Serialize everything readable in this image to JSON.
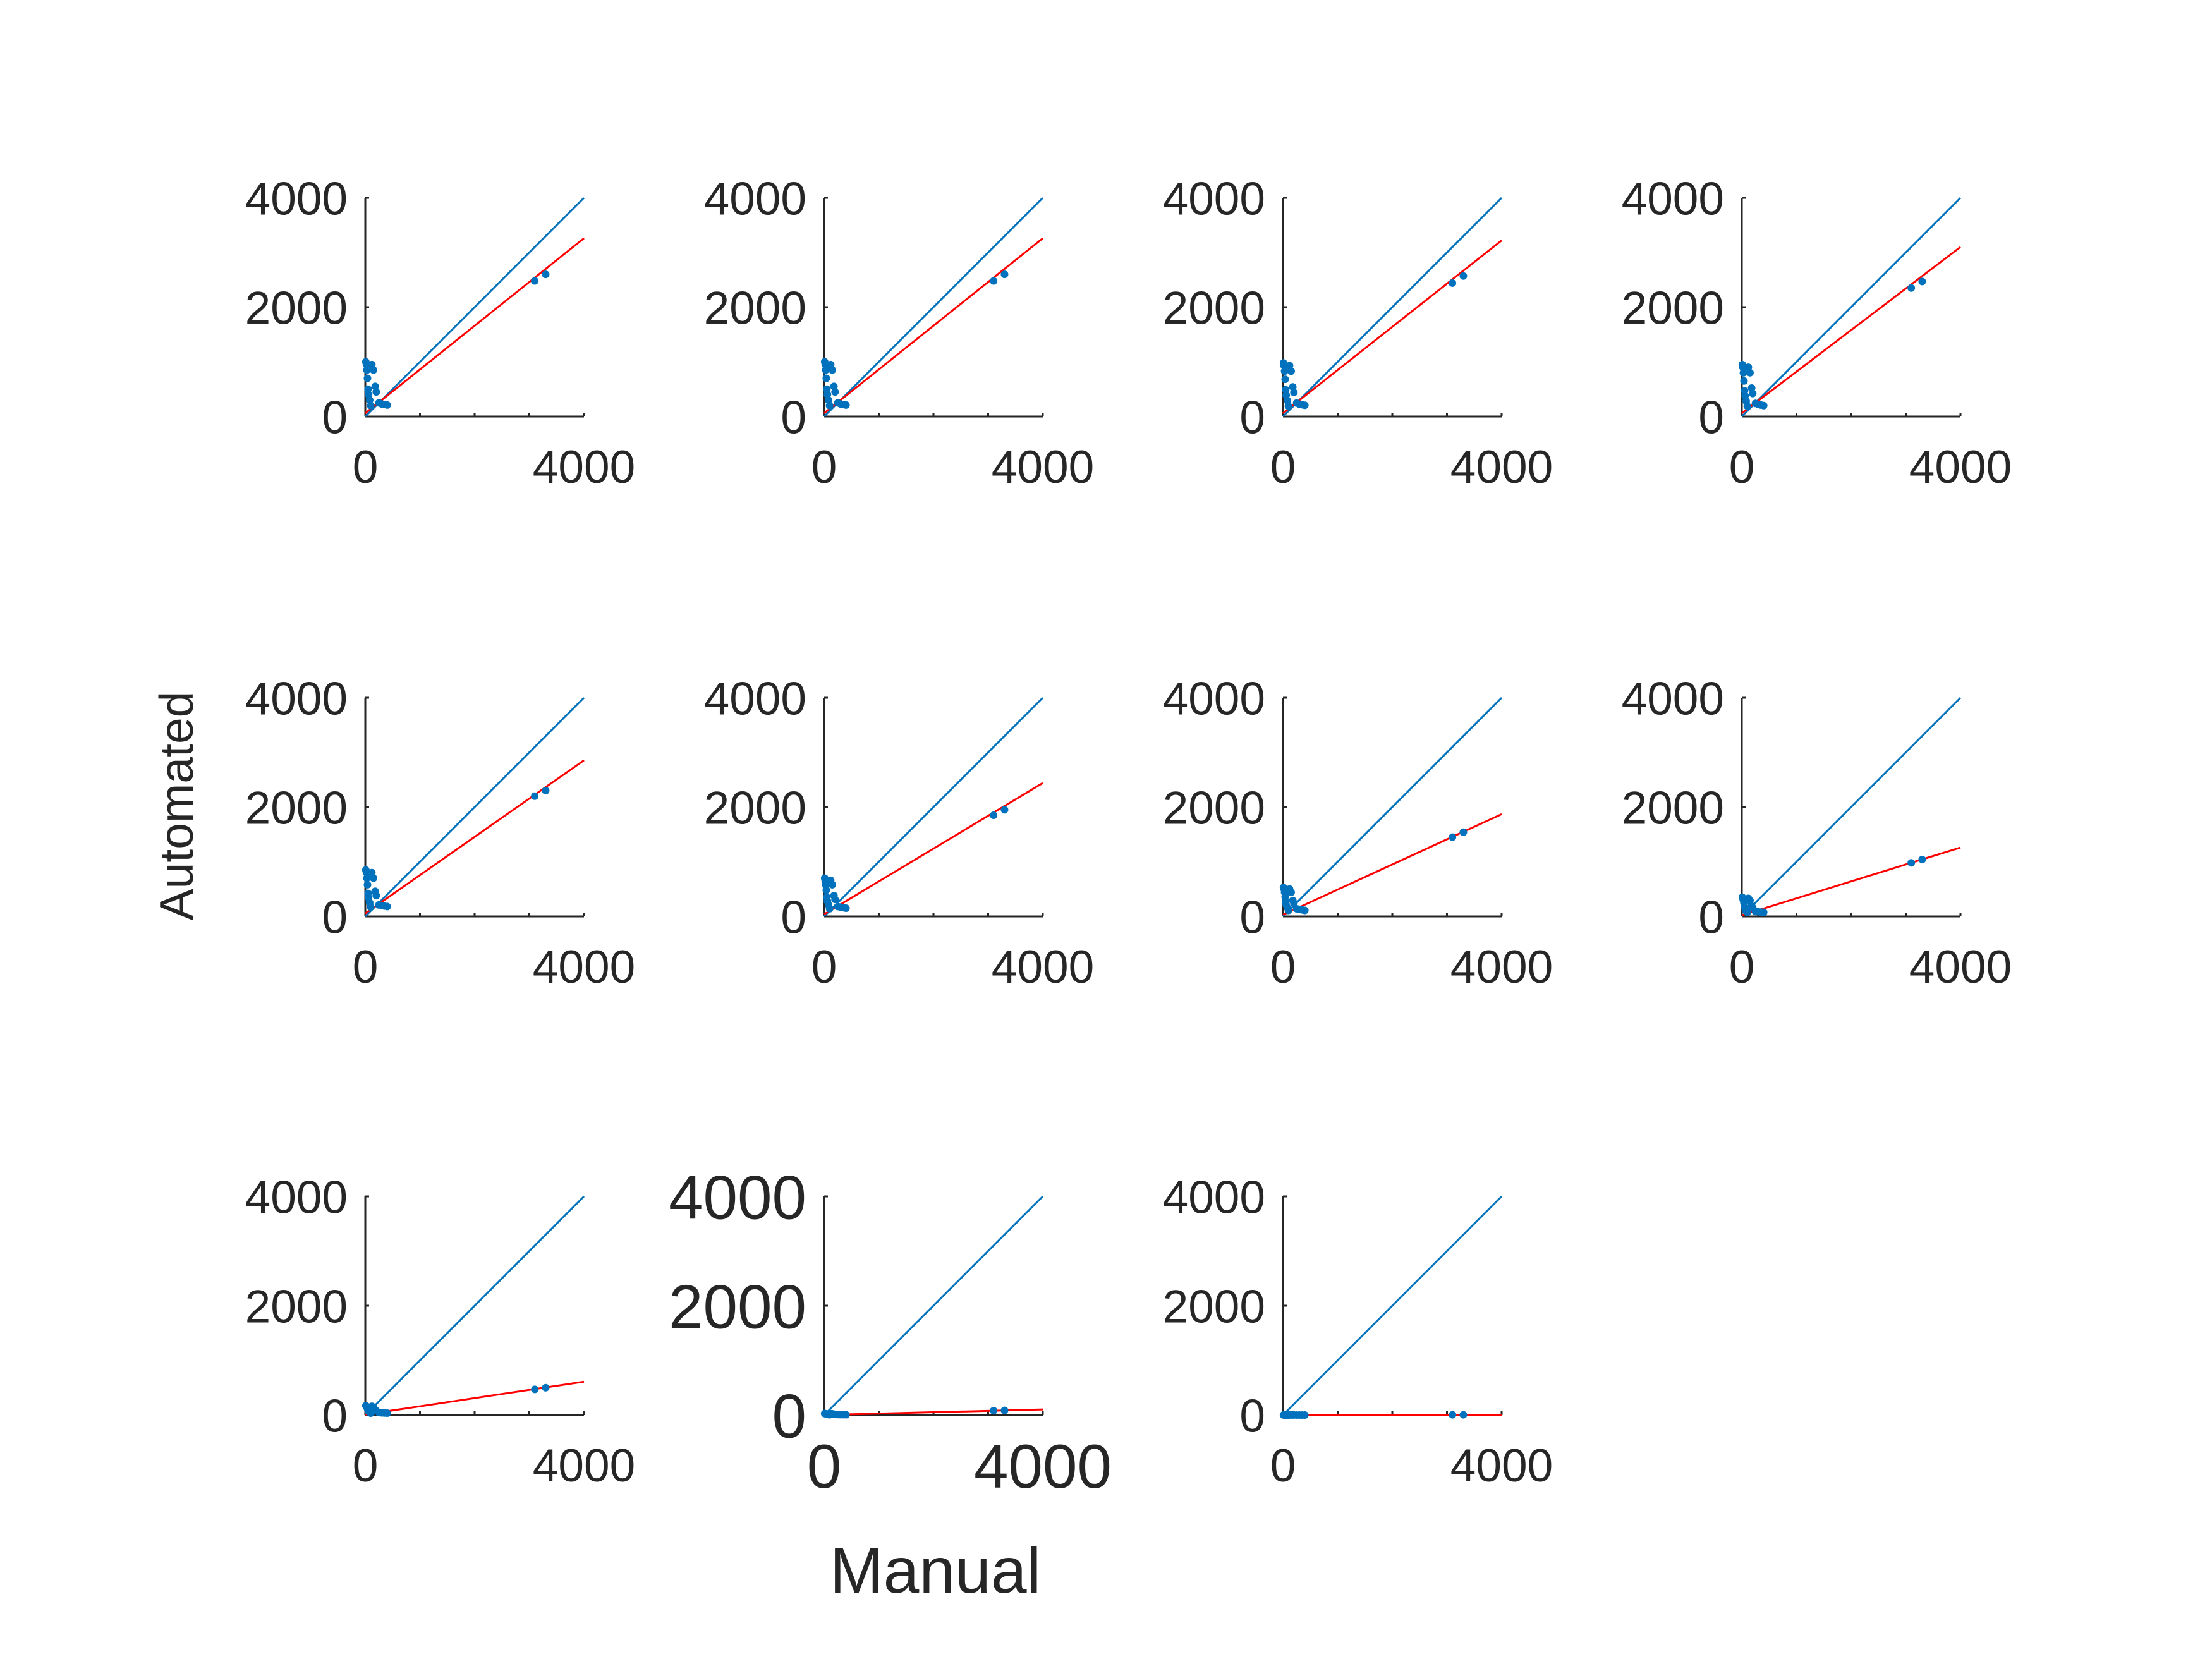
{
  "figure": {
    "xlabel": "Manual",
    "ylabel": "Automated",
    "colors": {
      "identity_line": "#0072BD",
      "fit_line": "#FF0000",
      "points": "#0072BD",
      "axes": "#262626"
    }
  },
  "chart_data": [
    {
      "type": "scatter",
      "xlim": [
        0,
        4000
      ],
      "ylim": [
        0,
        4000
      ],
      "xticks": [
        "0",
        "4000"
      ],
      "yticks": [
        "0",
        "2000",
        "4000"
      ],
      "identity_line": true,
      "fit_slope": 0.8,
      "fit_intercept": 60,
      "x": [
        10,
        20,
        30,
        40,
        50,
        60,
        80,
        100,
        120,
        150,
        180,
        200,
        250,
        300,
        350,
        400,
        3100,
        3300
      ],
      "y": [
        1000,
        950,
        850,
        700,
        500,
        400,
        300,
        200,
        950,
        850,
        550,
        450,
        250,
        230,
        220,
        210,
        2480,
        2600
      ]
    },
    {
      "type": "scatter",
      "xlim": [
        0,
        4000
      ],
      "ylim": [
        0,
        4000
      ],
      "xticks": [
        "0",
        "4000"
      ],
      "yticks": [
        "0",
        "2000",
        "4000"
      ],
      "identity_line": true,
      "fit_slope": 0.8,
      "fit_intercept": 60,
      "x": [
        10,
        20,
        30,
        40,
        50,
        60,
        80,
        100,
        120,
        150,
        180,
        200,
        250,
        300,
        350,
        400,
        3100,
        3300
      ],
      "y": [
        1000,
        950,
        850,
        700,
        500,
        400,
        300,
        200,
        950,
        850,
        550,
        450,
        250,
        230,
        220,
        210,
        2480,
        2600
      ]
    },
    {
      "type": "scatter",
      "xlim": [
        0,
        4000
      ],
      "ylim": [
        0,
        4000
      ],
      "xticks": [
        "0",
        "4000"
      ],
      "yticks": [
        "0",
        "2000",
        "4000"
      ],
      "identity_line": true,
      "fit_slope": 0.79,
      "fit_intercept": 60,
      "x": [
        10,
        20,
        30,
        40,
        50,
        60,
        80,
        100,
        120,
        150,
        180,
        200,
        250,
        300,
        350,
        400,
        3100,
        3300
      ],
      "y": [
        980,
        930,
        830,
        680,
        490,
        390,
        290,
        190,
        930,
        830,
        540,
        440,
        245,
        225,
        215,
        205,
        2440,
        2570
      ]
    },
    {
      "type": "scatter",
      "xlim": [
        0,
        4000
      ],
      "ylim": [
        0,
        4000
      ],
      "xticks": [
        "0",
        "4000"
      ],
      "yticks": [
        "0",
        "2000",
        "4000"
      ],
      "identity_line": true,
      "fit_slope": 0.76,
      "fit_intercept": 60,
      "x": [
        10,
        20,
        30,
        40,
        50,
        60,
        80,
        100,
        120,
        150,
        180,
        200,
        250,
        300,
        350,
        400,
        3100,
        3300
      ],
      "y": [
        950,
        900,
        800,
        650,
        470,
        380,
        280,
        190,
        900,
        800,
        520,
        420,
        240,
        220,
        210,
        200,
        2350,
        2470
      ]
    },
    {
      "type": "scatter",
      "xlim": [
        0,
        4000
      ],
      "ylim": [
        0,
        4000
      ],
      "xticks": [
        "0",
        "4000"
      ],
      "yticks": [
        "0",
        "2000",
        "4000"
      ],
      "identity_line": true,
      "fit_slope": 0.7,
      "fit_intercept": 55,
      "x": [
        10,
        20,
        30,
        40,
        50,
        60,
        80,
        100,
        120,
        150,
        180,
        200,
        250,
        300,
        350,
        400,
        3100,
        3300
      ],
      "y": [
        850,
        800,
        700,
        580,
        420,
        340,
        250,
        170,
        800,
        700,
        460,
        380,
        210,
        200,
        190,
        180,
        2200,
        2300
      ]
    },
    {
      "type": "scatter",
      "xlim": [
        0,
        4000
      ],
      "ylim": [
        0,
        4000
      ],
      "xticks": [
        "0",
        "4000"
      ],
      "yticks": [
        "0",
        "2000",
        "4000"
      ],
      "identity_line": true,
      "fit_slope": 0.6,
      "fit_intercept": 40,
      "x": [
        10,
        20,
        30,
        40,
        50,
        60,
        80,
        100,
        120,
        150,
        180,
        200,
        250,
        300,
        350,
        400,
        3100,
        3300
      ],
      "y": [
        700,
        650,
        580,
        480,
        350,
        280,
        210,
        140,
        660,
        580,
        380,
        310,
        180,
        170,
        160,
        150,
        1850,
        1950
      ]
    },
    {
      "type": "scatter",
      "xlim": [
        0,
        4000
      ],
      "ylim": [
        0,
        4000
      ],
      "xticks": [
        "0",
        "4000"
      ],
      "yticks": [
        "0",
        "2000",
        "4000"
      ],
      "identity_line": true,
      "fit_slope": 0.46,
      "fit_intercept": 30,
      "x": [
        10,
        20,
        30,
        40,
        50,
        60,
        80,
        100,
        120,
        150,
        180,
        200,
        250,
        300,
        350,
        400,
        3100,
        3300
      ],
      "y": [
        530,
        500,
        440,
        360,
        270,
        210,
        160,
        110,
        500,
        440,
        290,
        240,
        140,
        130,
        120,
        110,
        1450,
        1540
      ]
    },
    {
      "type": "scatter",
      "xlim": [
        0,
        4000
      ],
      "ylim": [
        0,
        4000
      ],
      "xticks": [
        "0",
        "4000"
      ],
      "yticks": [
        "0",
        "2000",
        "4000"
      ],
      "identity_line": true,
      "fit_slope": 0.31,
      "fit_intercept": 20,
      "x": [
        10,
        20,
        30,
        40,
        50,
        60,
        80,
        100,
        120,
        150,
        180,
        200,
        250,
        300,
        350,
        400,
        3100,
        3300
      ],
      "y": [
        350,
        330,
        290,
        240,
        180,
        140,
        100,
        75,
        330,
        290,
        190,
        160,
        90,
        85,
        80,
        75,
        980,
        1040
      ]
    },
    {
      "type": "scatter",
      "xlim": [
        0,
        4000
      ],
      "ylim": [
        0,
        4000
      ],
      "xticks": [
        "0",
        "4000"
      ],
      "yticks": [
        "0",
        "2000",
        "4000"
      ],
      "identity_line": true,
      "fit_slope": 0.15,
      "fit_intercept": 10,
      "x": [
        10,
        20,
        30,
        40,
        50,
        60,
        80,
        100,
        120,
        150,
        180,
        200,
        250,
        300,
        350,
        400,
        3100,
        3300
      ],
      "y": [
        170,
        160,
        140,
        115,
        90,
        70,
        50,
        35,
        160,
        140,
        95,
        80,
        45,
        40,
        38,
        35,
        470,
        500
      ]
    },
    {
      "type": "scatter",
      "xlim": [
        0,
        4000
      ],
      "ylim": [
        0,
        4000
      ],
      "xticks": [
        "0",
        "4000"
      ],
      "yticks": [
        "0",
        "2000",
        "4000"
      ],
      "identity_line": true,
      "fit_slope": 0.025,
      "fit_intercept": 2,
      "x": [
        10,
        20,
        30,
        40,
        50,
        60,
        80,
        100,
        120,
        150,
        180,
        200,
        250,
        300,
        350,
        400,
        3100,
        3300
      ],
      "y": [
        28,
        26,
        23,
        19,
        15,
        12,
        8,
        6,
        26,
        23,
        15,
        13,
        8,
        7,
        7,
        6,
        80,
        85
      ]
    },
    {
      "type": "scatter",
      "xlim": [
        0,
        4000
      ],
      "ylim": [
        0,
        4000
      ],
      "xticks": [
        "0",
        "4000"
      ],
      "yticks": [
        "0",
        "2000",
        "4000"
      ],
      "identity_line": true,
      "fit_slope": 0.0,
      "fit_intercept": 0,
      "x": [
        10,
        20,
        30,
        40,
        50,
        60,
        80,
        100,
        120,
        150,
        180,
        200,
        250,
        300,
        350,
        400,
        3100,
        3300
      ],
      "y": [
        2,
        2,
        2,
        1,
        1,
        1,
        1,
        0,
        2,
        2,
        1,
        1,
        0,
        0,
        0,
        0,
        5,
        5
      ]
    }
  ]
}
